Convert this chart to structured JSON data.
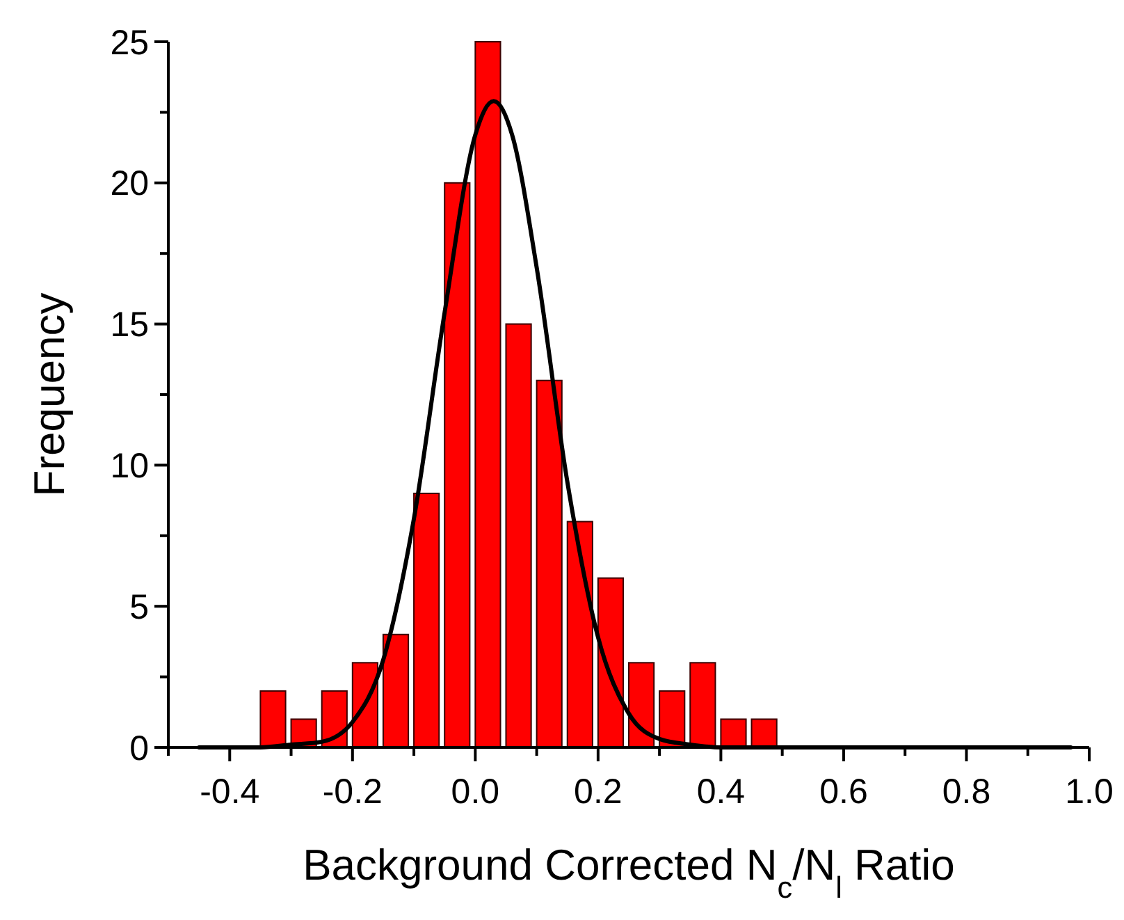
{
  "chart_data": {
    "type": "histogram",
    "xlabel": "Background Corrected N$_{c}$/N$_{l}$ Ratio",
    "ylabel": "Frequency",
    "xlim": [
      -0.5,
      1.0
    ],
    "xticks": [
      {
        "value": -0.5,
        "label": null
      },
      "-0.4",
      {
        "value": -0.3,
        "label": null
      },
      "-0.2",
      {
        "value": -0.1,
        "label": null
      },
      {
        "value": 0,
        "label": "0.0"
      },
      {
        "value": 0.1,
        "label": null
      },
      0.2,
      {
        "value": 0.3,
        "label": null
      },
      0.4,
      {
        "value": 0.5,
        "label": null
      },
      0.6,
      {
        "value": 0.7,
        "label": null
      },
      0.8,
      {
        "value": 0.9,
        "label": null
      },
      {
        "value": 1,
        "label": "1.0"
      }
    ],
    "ylim": [
      0,
      25
    ],
    "yticks": [
      0,
      {
        "value": 2.5,
        "label": null
      },
      5,
      {
        "value": 7.5,
        "label": null
      },
      10,
      {
        "value": 12.5,
        "label": null
      },
      15,
      {
        "value": 17.5,
        "label": null
      },
      20,
      {
        "value": 22.5,
        "label": null
      },
      25
    ],
    "grid": false,
    "series": [
      {
        "color": "#ff0000",
        "bins": [
          -0.35,
          -0.3,
          -0.25,
          -0.2,
          -0.15,
          -0.1,
          -0.05,
          0,
          0.05,
          0.1,
          0.15,
          0.2,
          0.25,
          0.3,
          0.35,
          0.4,
          0.45,
          0.5
        ],
        "values": [
          2,
          1,
          2,
          3,
          4,
          9,
          20,
          25,
          15,
          13,
          8,
          6,
          3,
          2,
          3,
          1,
          1
        ]
      },
      {
        "type": "line",
        "color": "#000000",
        "x": [
          -0.45,
          -0.35,
          -0.3,
          -0.25,
          -0.2,
          -0.15,
          -0.1,
          -0.05,
          0,
          0.03,
          0.06,
          0.1,
          0.15,
          0.2,
          0.25,
          0.3,
          0.35,
          0.4,
          0.5,
          0.97
        ],
        "values": [
          0,
          0,
          0.1,
          0.2,
          0.9,
          3.1,
          8.1,
          15.4,
          21.7,
          22.9,
          21.7,
          17.0,
          9.4,
          3.9,
          1.2,
          0.3,
          0.1,
          0,
          0,
          0
        ]
      }
    ]
  }
}
